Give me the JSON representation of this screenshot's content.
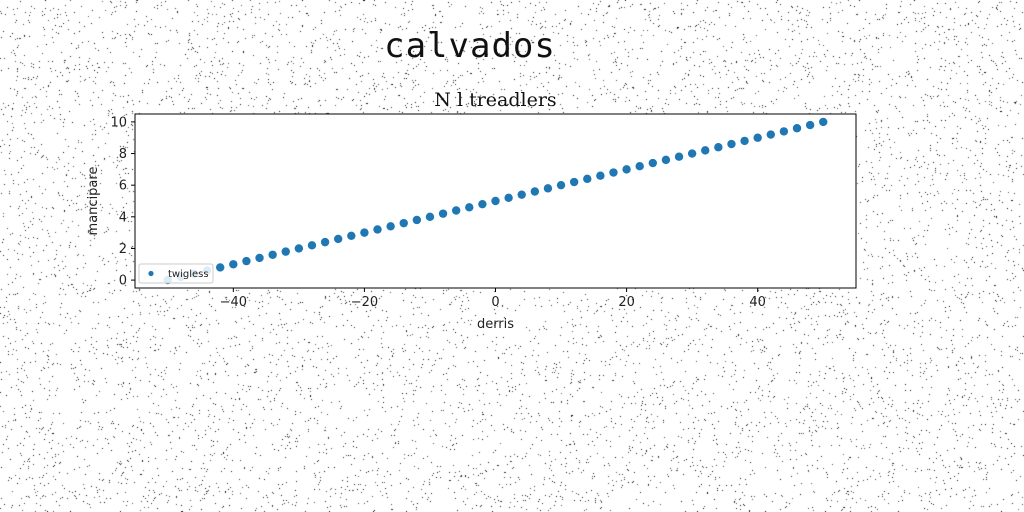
{
  "figure": {
    "suptitle": "calvados"
  },
  "chart_data": {
    "type": "scatter",
    "title": "N l treadlers",
    "xlabel": "derris",
    "ylabel": "mancipare",
    "xlim": [
      -55,
      55
    ],
    "ylim": [
      -0.5,
      10.5
    ],
    "xticks": [
      -40,
      -20,
      0,
      20,
      40
    ],
    "xtick_labels": [
      "−40",
      "−20",
      "0",
      "20",
      "40"
    ],
    "yticks": [
      0,
      2,
      4,
      6,
      8,
      10
    ],
    "ytick_labels": [
      "0",
      "2",
      "4",
      "6",
      "8",
      "10"
    ],
    "grid": false,
    "legend_position": "lower-left",
    "series": [
      {
        "name": "twigless",
        "color": "#1f77b4",
        "x": [
          -50,
          -48,
          -46,
          -44,
          -42,
          -40,
          -38,
          -36,
          -34,
          -32,
          -30,
          -28,
          -26,
          -24,
          -22,
          -20,
          -18,
          -16,
          -14,
          -12,
          -10,
          -8,
          -6,
          -4,
          -2,
          0,
          2,
          4,
          6,
          8,
          10,
          12,
          14,
          16,
          18,
          20,
          22,
          24,
          26,
          28,
          30,
          32,
          34,
          36,
          38,
          40,
          42,
          44,
          46,
          48,
          50
        ],
        "y": [
          0.0,
          0.2,
          0.4,
          0.6,
          0.8,
          1.0,
          1.2,
          1.4,
          1.6,
          1.8,
          2.0,
          2.2,
          2.4,
          2.6,
          2.8,
          3.0,
          3.2,
          3.4,
          3.6,
          3.8,
          4.0,
          4.2,
          4.4,
          4.6,
          4.8,
          5.0,
          5.2,
          5.4,
          5.6,
          5.8,
          6.0,
          6.2,
          6.4,
          6.6,
          6.8,
          7.0,
          7.2,
          7.4,
          7.6,
          7.8,
          8.0,
          8.2,
          8.4,
          8.6,
          8.8,
          9.0,
          9.2,
          9.4,
          9.6,
          9.8,
          10.0
        ]
      }
    ]
  }
}
